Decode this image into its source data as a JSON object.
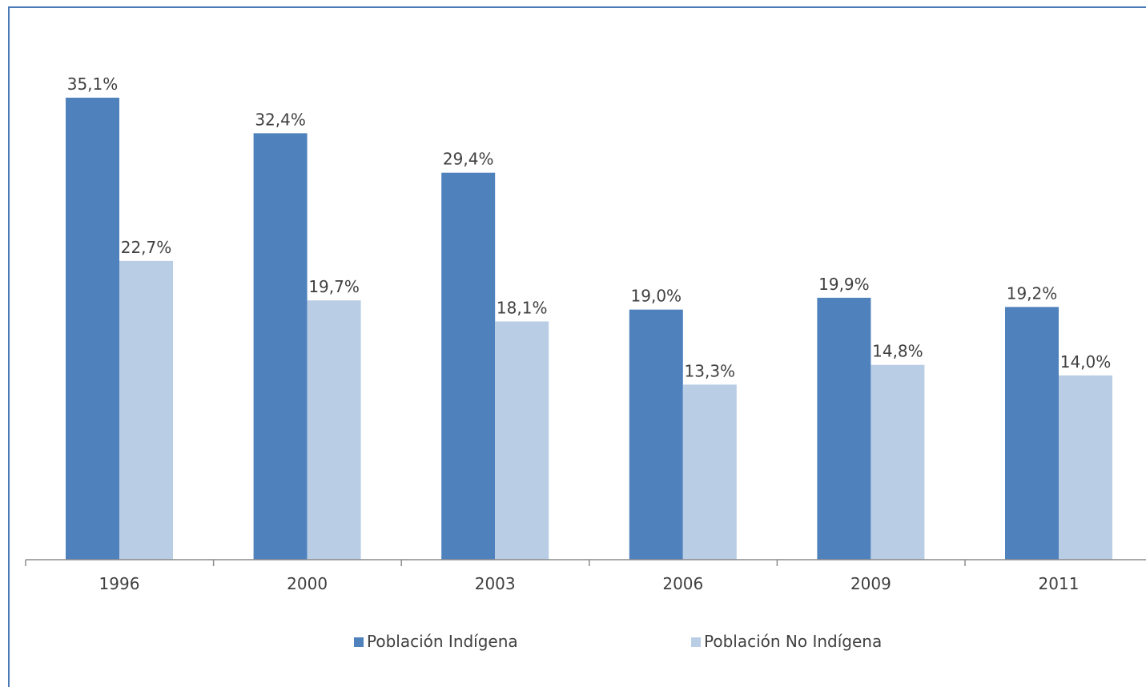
{
  "chart_data": {
    "type": "bar",
    "categories": [
      "1996",
      "2000",
      "2003",
      "2006",
      "2009",
      "2011"
    ],
    "series": [
      {
        "name": "Población Indígena",
        "values": [
          35.1,
          32.4,
          29.4,
          19.0,
          19.9,
          19.2
        ],
        "labels": [
          "35,1%",
          "32,4%",
          "29,4%",
          "19,0%",
          "19,9%",
          "19,2%"
        ],
        "color": "#4f81bd"
      },
      {
        "name": "Población No Indígena",
        "values": [
          22.7,
          19.7,
          18.1,
          13.3,
          14.8,
          14.0
        ],
        "labels": [
          "22,7%",
          "19,7%",
          "18,1%",
          "13,3%",
          "14,8%",
          "14,0%"
        ],
        "color": "#b9cde5"
      }
    ],
    "title": "",
    "xlabel": "",
    "ylabel": "",
    "ylim": [
      0,
      35.1
    ],
    "grid": false,
    "legend": "bottom"
  }
}
